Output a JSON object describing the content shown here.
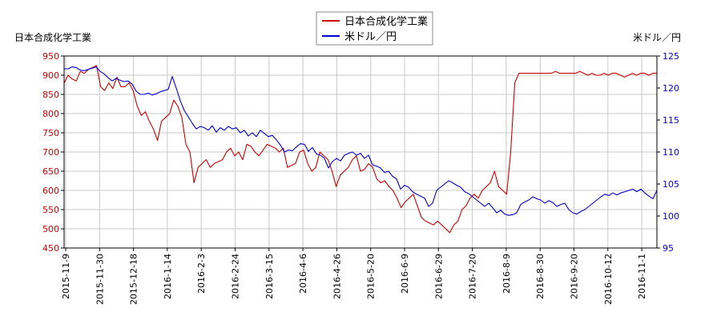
{
  "chart_data": {
    "type": "line",
    "title": "",
    "y_left_label": "日本合成化学工業",
    "y_right_label": "米ドル／円",
    "x_tick_labels": [
      "2015-11-9",
      "2015-11-30",
      "2015-12-18",
      "2016-1-14",
      "2016-2-3",
      "2016-2-24",
      "2016-3-15",
      "2016-4-6",
      "2016-4-26",
      "2016-5-20",
      "2016-6-9",
      "2016-6-29",
      "2016-7-20",
      "2016-8-9",
      "2016-8-30",
      "2016-9-20",
      "2016-10-12",
      "2016-11-1"
    ],
    "y_left_ticks": [
      450,
      500,
      550,
      600,
      650,
      700,
      750,
      800,
      850,
      900,
      950
    ],
    "y_right_ticks": [
      95,
      100,
      105,
      110,
      115,
      120,
      125
    ],
    "y_left_range": [
      450,
      950
    ],
    "y_right_range": [
      95,
      125
    ],
    "grid": true,
    "legend_position": "top-center",
    "series": [
      {
        "name": "日本合成化学工業",
        "axis": "left",
        "color": "#cc0000",
        "values": [
          880,
          900,
          890,
          885,
          910,
          905,
          915,
          920,
          925,
          870,
          860,
          880,
          865,
          895,
          870,
          870,
          880,
          860,
          820,
          795,
          805,
          780,
          760,
          730,
          780,
          790,
          800,
          835,
          820,
          790,
          720,
          700,
          620,
          660,
          670,
          680,
          660,
          670,
          675,
          680,
          700,
          710,
          690,
          700,
          680,
          720,
          715,
          700,
          690,
          705,
          720,
          715,
          710,
          700,
          710,
          660,
          665,
          670,
          700,
          705,
          670,
          650,
          660,
          700,
          690,
          680,
          650,
          610,
          640,
          650,
          660,
          680,
          690,
          650,
          655,
          670,
          660,
          630,
          620,
          625,
          610,
          600,
          580,
          555,
          570,
          580,
          590,
          560,
          530,
          520,
          515,
          510,
          520,
          510,
          500,
          490,
          510,
          520,
          550,
          560,
          580,
          590,
          580,
          600,
          610,
          620,
          650,
          610,
          600,
          590,
          700,
          880,
          905,
          905,
          905,
          905,
          905,
          905,
          905,
          905,
          905,
          910,
          905,
          905,
          905,
          905,
          905,
          910,
          905,
          900,
          905,
          900,
          900,
          905,
          900,
          905,
          905,
          900,
          895,
          900,
          905,
          900,
          905,
          905,
          900,
          905,
          905
        ]
      },
      {
        "name": "米ドル／円",
        "axis": "right",
        "color": "#0000cc",
        "values": [
          123,
          123,
          123.3,
          123.2,
          122.8,
          122.7,
          122.9,
          123.1,
          123.3,
          122.6,
          122.2,
          121.6,
          121.1,
          121.5,
          121.2,
          121,
          121.1,
          120.6,
          119.5,
          119,
          119,
          119.2,
          118.9,
          119.1,
          119.4,
          119.6,
          119.8,
          121.8,
          120,
          118,
          116.5,
          115.5,
          114.5,
          113.6,
          114,
          113.8,
          113.4,
          114.1,
          113.1,
          113.8,
          113.4,
          114,
          113.6,
          113.8,
          113,
          113.4,
          112.5,
          113,
          112.4,
          113.4,
          112.9,
          112.4,
          112.6,
          111.9,
          111.1,
          110,
          110.3,
          110.2,
          110.8,
          111.3,
          111.2,
          110.1,
          110.7,
          109.7,
          109.5,
          109,
          107.5,
          108.5,
          109,
          108.6,
          109.5,
          109.8,
          110,
          109.5,
          109.8,
          109,
          109.5,
          108,
          107.8,
          107.5,
          106.8,
          107,
          106.2,
          105.8,
          104.2,
          104.8,
          104.5,
          103.8,
          103.4,
          103.1,
          102.8,
          101.5,
          102,
          104,
          104.5,
          105,
          105.5,
          105.2,
          104.8,
          104.5,
          103.8,
          103.5,
          103,
          102.5,
          102,
          101.5,
          102,
          101.3,
          100.5,
          100.9,
          100.3,
          100.1,
          100.2,
          100.5,
          101.8,
          102.2,
          102.5,
          103,
          102.7,
          102.5,
          102,
          102.4,
          102.1,
          101.5,
          101.8,
          102,
          101,
          100.5,
          100.3,
          100.7,
          101,
          101.5,
          102,
          102.5,
          103,
          103.4,
          103.2,
          103.6,
          103.3,
          103.6,
          103.8,
          104,
          104.2,
          103.8,
          104.2,
          103.6,
          103.1,
          102.7,
          104
        ]
      }
    ]
  }
}
